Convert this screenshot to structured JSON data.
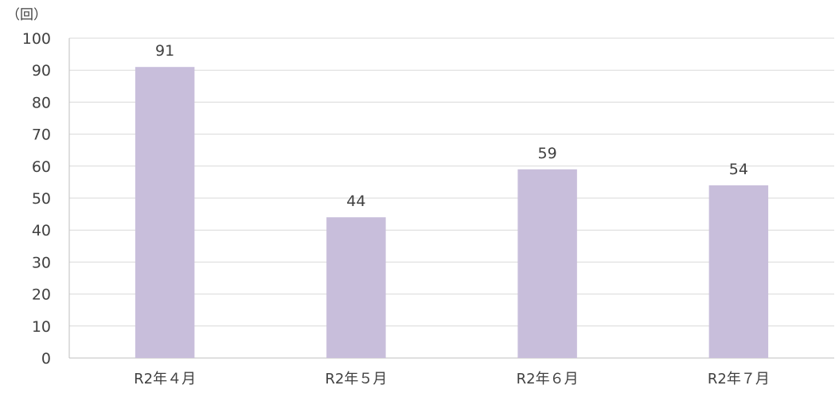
{
  "chart_data": {
    "type": "bar",
    "title": "",
    "ylabel": "（回）",
    "xlabel": "",
    "categories": [
      "R2年４月",
      "R2年５月",
      "R2年６月",
      "R2年７月"
    ],
    "values": [
      91,
      44,
      59,
      54
    ],
    "ylim": [
      0,
      100
    ],
    "yticks": [
      0,
      10,
      20,
      30,
      40,
      50,
      60,
      70,
      80,
      90,
      100
    ],
    "grid": true,
    "data_labels": true,
    "colors": {
      "bar": "#c8bedb",
      "grid": "#d9d9d9",
      "axis": "#bfbfbf",
      "text": "#404040"
    }
  }
}
